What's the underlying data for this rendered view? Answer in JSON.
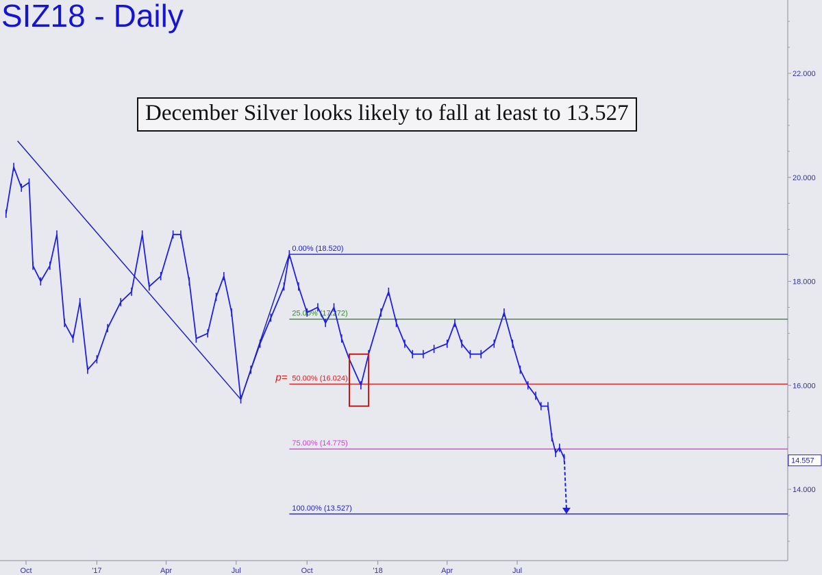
{
  "chart_data": {
    "type": "line",
    "title": "SIZ18 - Daily",
    "annotation": "December Silver looks likely to fall at least to 13.527",
    "x_ticks": [
      "Oct",
      "'17",
      "Apr",
      "Jul",
      "Oct",
      "'18",
      "Apr",
      "Jul"
    ],
    "y_ticks": [
      "14.000",
      "16.000",
      "18.000",
      "20.000",
      "22.000"
    ],
    "ylim": [
      12.1,
      23.8
    ],
    "last_price": "14.557",
    "fib_levels": [
      {
        "pct": "0.00%",
        "value": 18.52,
        "label": "0.00% (18.520)",
        "color": "#2020c0"
      },
      {
        "pct": "25.00%",
        "value": 17.272,
        "label": "25.00% (17.272)",
        "color": "#2e8b2e"
      },
      {
        "pct": "50.00%",
        "value": 16.024,
        "label": "50.00% (16.024)",
        "color": "#d02020"
      },
      {
        "pct": "75.00%",
        "value": 14.775,
        "label": "75.00% (14.775)",
        "color": "#d040d0"
      },
      {
        "pct": "100.00%",
        "value": 13.527,
        "label": "100.00% (13.527)",
        "color": "#2020c0"
      }
    ],
    "pivot_label": "p=",
    "abc_pattern": [
      {
        "x": "2016-09-20",
        "y": 20.7
      },
      {
        "x": "2017-07-07",
        "y": 15.73
      },
      {
        "x": "2017-09-08",
        "y": 18.52
      }
    ],
    "target_arrow": {
      "from": {
        "x": "2018-08-31",
        "y": 14.65
      },
      "to": {
        "x": "2018-09-03",
        "y": 13.527
      }
    },
    "highlight_box": {
      "x_from": "2017-11-25",
      "x_to": "2017-12-20",
      "y_from": 15.6,
      "y_to": 16.6
    },
    "series": [
      {
        "values": [
          [
            "2016-09-05",
            19.3
          ],
          [
            "2016-09-15",
            20.2
          ],
          [
            "2016-09-25",
            19.8
          ],
          [
            "2016-10-05",
            19.9
          ],
          [
            "2016-10-10",
            18.3
          ],
          [
            "2016-10-20",
            18.0
          ],
          [
            "2016-11-01",
            18.3
          ],
          [
            "2016-11-10",
            18.9
          ],
          [
            "2016-11-20",
            17.2
          ],
          [
            "2016-12-01",
            16.9
          ],
          [
            "2016-12-10",
            17.6
          ],
          [
            "2016-12-20",
            16.3
          ],
          [
            "2017-01-01",
            16.5
          ],
          [
            "2017-01-15",
            17.1
          ],
          [
            "2017-02-01",
            17.6
          ],
          [
            "2017-02-15",
            17.8
          ],
          [
            "2017-03-01",
            18.9
          ],
          [
            "2017-03-10",
            17.9
          ],
          [
            "2017-03-25",
            18.1
          ],
          [
            "2017-04-10",
            18.9
          ],
          [
            "2017-04-20",
            18.9
          ],
          [
            "2017-05-01",
            18.0
          ],
          [
            "2017-05-10",
            16.9
          ],
          [
            "2017-05-25",
            17.0
          ],
          [
            "2017-06-05",
            17.7
          ],
          [
            "2017-06-15",
            18.1
          ],
          [
            "2017-06-25",
            17.4
          ],
          [
            "2017-07-07",
            15.73
          ],
          [
            "2017-07-20",
            16.3
          ],
          [
            "2017-08-01",
            16.8
          ],
          [
            "2017-08-15",
            17.3
          ],
          [
            "2017-09-01",
            17.9
          ],
          [
            "2017-09-08",
            18.52
          ],
          [
            "2017-09-20",
            17.9
          ],
          [
            "2017-10-01",
            17.4
          ],
          [
            "2017-10-15",
            17.5
          ],
          [
            "2017-10-25",
            17.2
          ],
          [
            "2017-11-05",
            17.5
          ],
          [
            "2017-11-15",
            16.9
          ],
          [
            "2017-11-25",
            16.5
          ],
          [
            "2017-12-10",
            16.0
          ],
          [
            "2017-12-20",
            16.6
          ],
          [
            "2018-01-05",
            17.4
          ],
          [
            "2018-01-15",
            17.8
          ],
          [
            "2018-01-25",
            17.2
          ],
          [
            "2018-02-05",
            16.8
          ],
          [
            "2018-02-15",
            16.6
          ],
          [
            "2018-03-01",
            16.6
          ],
          [
            "2018-03-15",
            16.7
          ],
          [
            "2018-04-01",
            16.8
          ],
          [
            "2018-04-11",
            17.2
          ],
          [
            "2018-04-20",
            16.8
          ],
          [
            "2018-05-01",
            16.6
          ],
          [
            "2018-05-15",
            16.6
          ],
          [
            "2018-06-01",
            16.8
          ],
          [
            "2018-06-14",
            17.4
          ],
          [
            "2018-06-25",
            16.8
          ],
          [
            "2018-07-05",
            16.3
          ],
          [
            "2018-07-15",
            16.0
          ],
          [
            "2018-07-25",
            15.8
          ],
          [
            "2018-08-01",
            15.6
          ],
          [
            "2018-08-10",
            15.6
          ],
          [
            "2018-08-15",
            15.0
          ],
          [
            "2018-08-20",
            14.7
          ],
          [
            "2018-08-25",
            14.8
          ],
          [
            "2018-08-31",
            14.6
          ]
        ]
      }
    ]
  }
}
